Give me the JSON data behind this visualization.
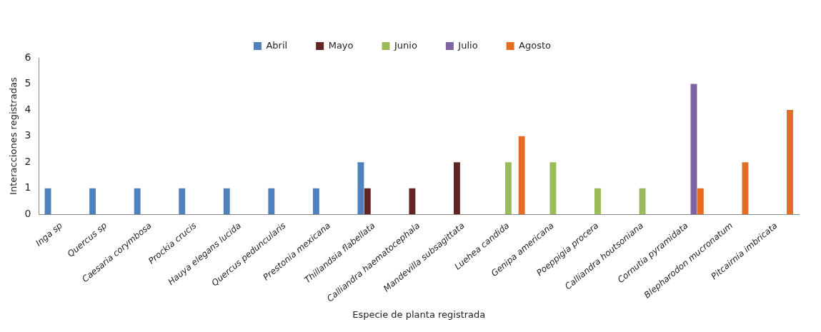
{
  "chart_data": {
    "type": "bar",
    "xlabel": "Especie de planta registrada",
    "ylabel": "Interacciones registradas",
    "categories": [
      "Inga sp",
      "Quercus sp",
      "Caesaria corymbosa",
      "Prockia crucis",
      "Hauya elegans lucida",
      "Quercus peduncularis",
      "Prestonia mexicana",
      "Thillandsia flabellata",
      "Calliandra haematocephala",
      "Mandevilla subsagittata",
      "Luehea candida",
      "Genipa americana",
      "Poeppigia procera",
      "Calliandra houtsoniana",
      "Cornutia pyramidata",
      "Blepharodon mucronatum",
      "Pitcairnia imbricata"
    ],
    "series": [
      {
        "name": "Abril",
        "color": "#4f81bd",
        "values": [
          1,
          1,
          1,
          1,
          1,
          1,
          1,
          2,
          0,
          0,
          0,
          0,
          0,
          0,
          0,
          0,
          0
        ]
      },
      {
        "name": "Mayo",
        "color": "#632523",
        "values": [
          0,
          0,
          0,
          0,
          0,
          0,
          0,
          1,
          1,
          2,
          0,
          0,
          0,
          0,
          0,
          0,
          0
        ]
      },
      {
        "name": "Junio",
        "color": "#9bbb59",
        "values": [
          0,
          0,
          0,
          0,
          0,
          0,
          0,
          0,
          0,
          0,
          2,
          2,
          1,
          1,
          0,
          0,
          0
        ]
      },
      {
        "name": "Julio",
        "color": "#8064a2",
        "values": [
          0,
          0,
          0,
          0,
          0,
          0,
          0,
          0,
          0,
          0,
          0,
          0,
          0,
          0,
          5,
          0,
          0
        ]
      },
      {
        "name": "Agosto",
        "color": "#e46c24",
        "values": [
          0,
          0,
          0,
          0,
          0,
          0,
          0,
          0,
          0,
          0,
          3,
          0,
          0,
          0,
          1,
          2,
          4
        ]
      }
    ],
    "ylim": [
      0,
      6
    ],
    "yticks": [
      0,
      1,
      2,
      3,
      4,
      5,
      6
    ],
    "grid": false,
    "legend": "top"
  }
}
